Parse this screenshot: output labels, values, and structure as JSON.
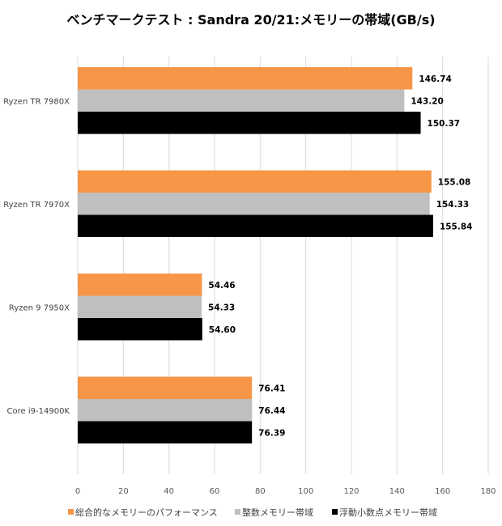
{
  "chart_data": {
    "type": "bar",
    "orientation": "horizontal",
    "title": "ベンチマークテスト : Sandra 20/21:メモリーの帯域(GB/s)",
    "categories": [
      "Ryzen TR 7980X",
      "Ryzen TR 7970X",
      "Ryzen 9 7950X",
      "Core i9-14900K"
    ],
    "series": [
      {
        "name": "総合的なメモリーのパフォーマンス",
        "color": "#F79646",
        "values": [
          146.74,
          155.08,
          54.46,
          76.41
        ],
        "labels": [
          "146.74",
          "155.08",
          "54.46",
          "76.41"
        ]
      },
      {
        "name": "整数メモリー帯域",
        "color": "#BFBFBF",
        "values": [
          143.2,
          154.33,
          54.33,
          76.44
        ],
        "labels": [
          "143.20",
          "154.33",
          "54.33",
          "76.44"
        ]
      },
      {
        "name": "浮動小数点メモリー帯域",
        "color": "#000000",
        "values": [
          150.37,
          155.84,
          54.6,
          76.39
        ],
        "labels": [
          "150.37",
          "155.84",
          "54.60",
          "76.39"
        ]
      }
    ],
    "xlim": [
      0,
      180
    ],
    "xticks": [
      "0",
      "20",
      "40",
      "60",
      "80",
      "100",
      "120",
      "140",
      "160",
      "180"
    ],
    "grid": true,
    "legend_position": "bottom"
  }
}
